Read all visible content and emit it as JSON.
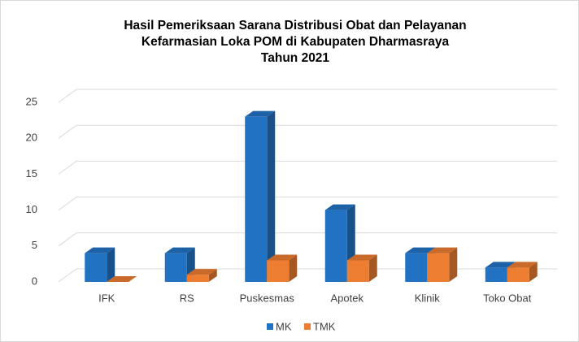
{
  "chart_data": {
    "type": "bar3d",
    "title": [
      "Hasil Pemeriksaan Sarana Distribusi Obat dan Pelayanan",
      "Kefarmasian Loka POM di Kabupaten Dharmasraya",
      "Tahun 2021"
    ],
    "categories": [
      "IFK",
      "RS",
      "Puskesmas",
      "Apotek",
      "Klinik",
      "Toko Obat"
    ],
    "series": [
      {
        "name": "MK",
        "color": "#2272c3",
        "values": [
          4,
          4,
          23,
          10,
          4,
          2
        ]
      },
      {
        "name": "TMK",
        "color": "#ed7d31",
        "values": [
          0,
          1,
          3,
          3,
          4,
          2
        ]
      }
    ],
    "ylim": [
      0,
      25
    ],
    "yticks": [
      0,
      5,
      10,
      15,
      20,
      25
    ],
    "grid": true,
    "legend": "bottom"
  }
}
